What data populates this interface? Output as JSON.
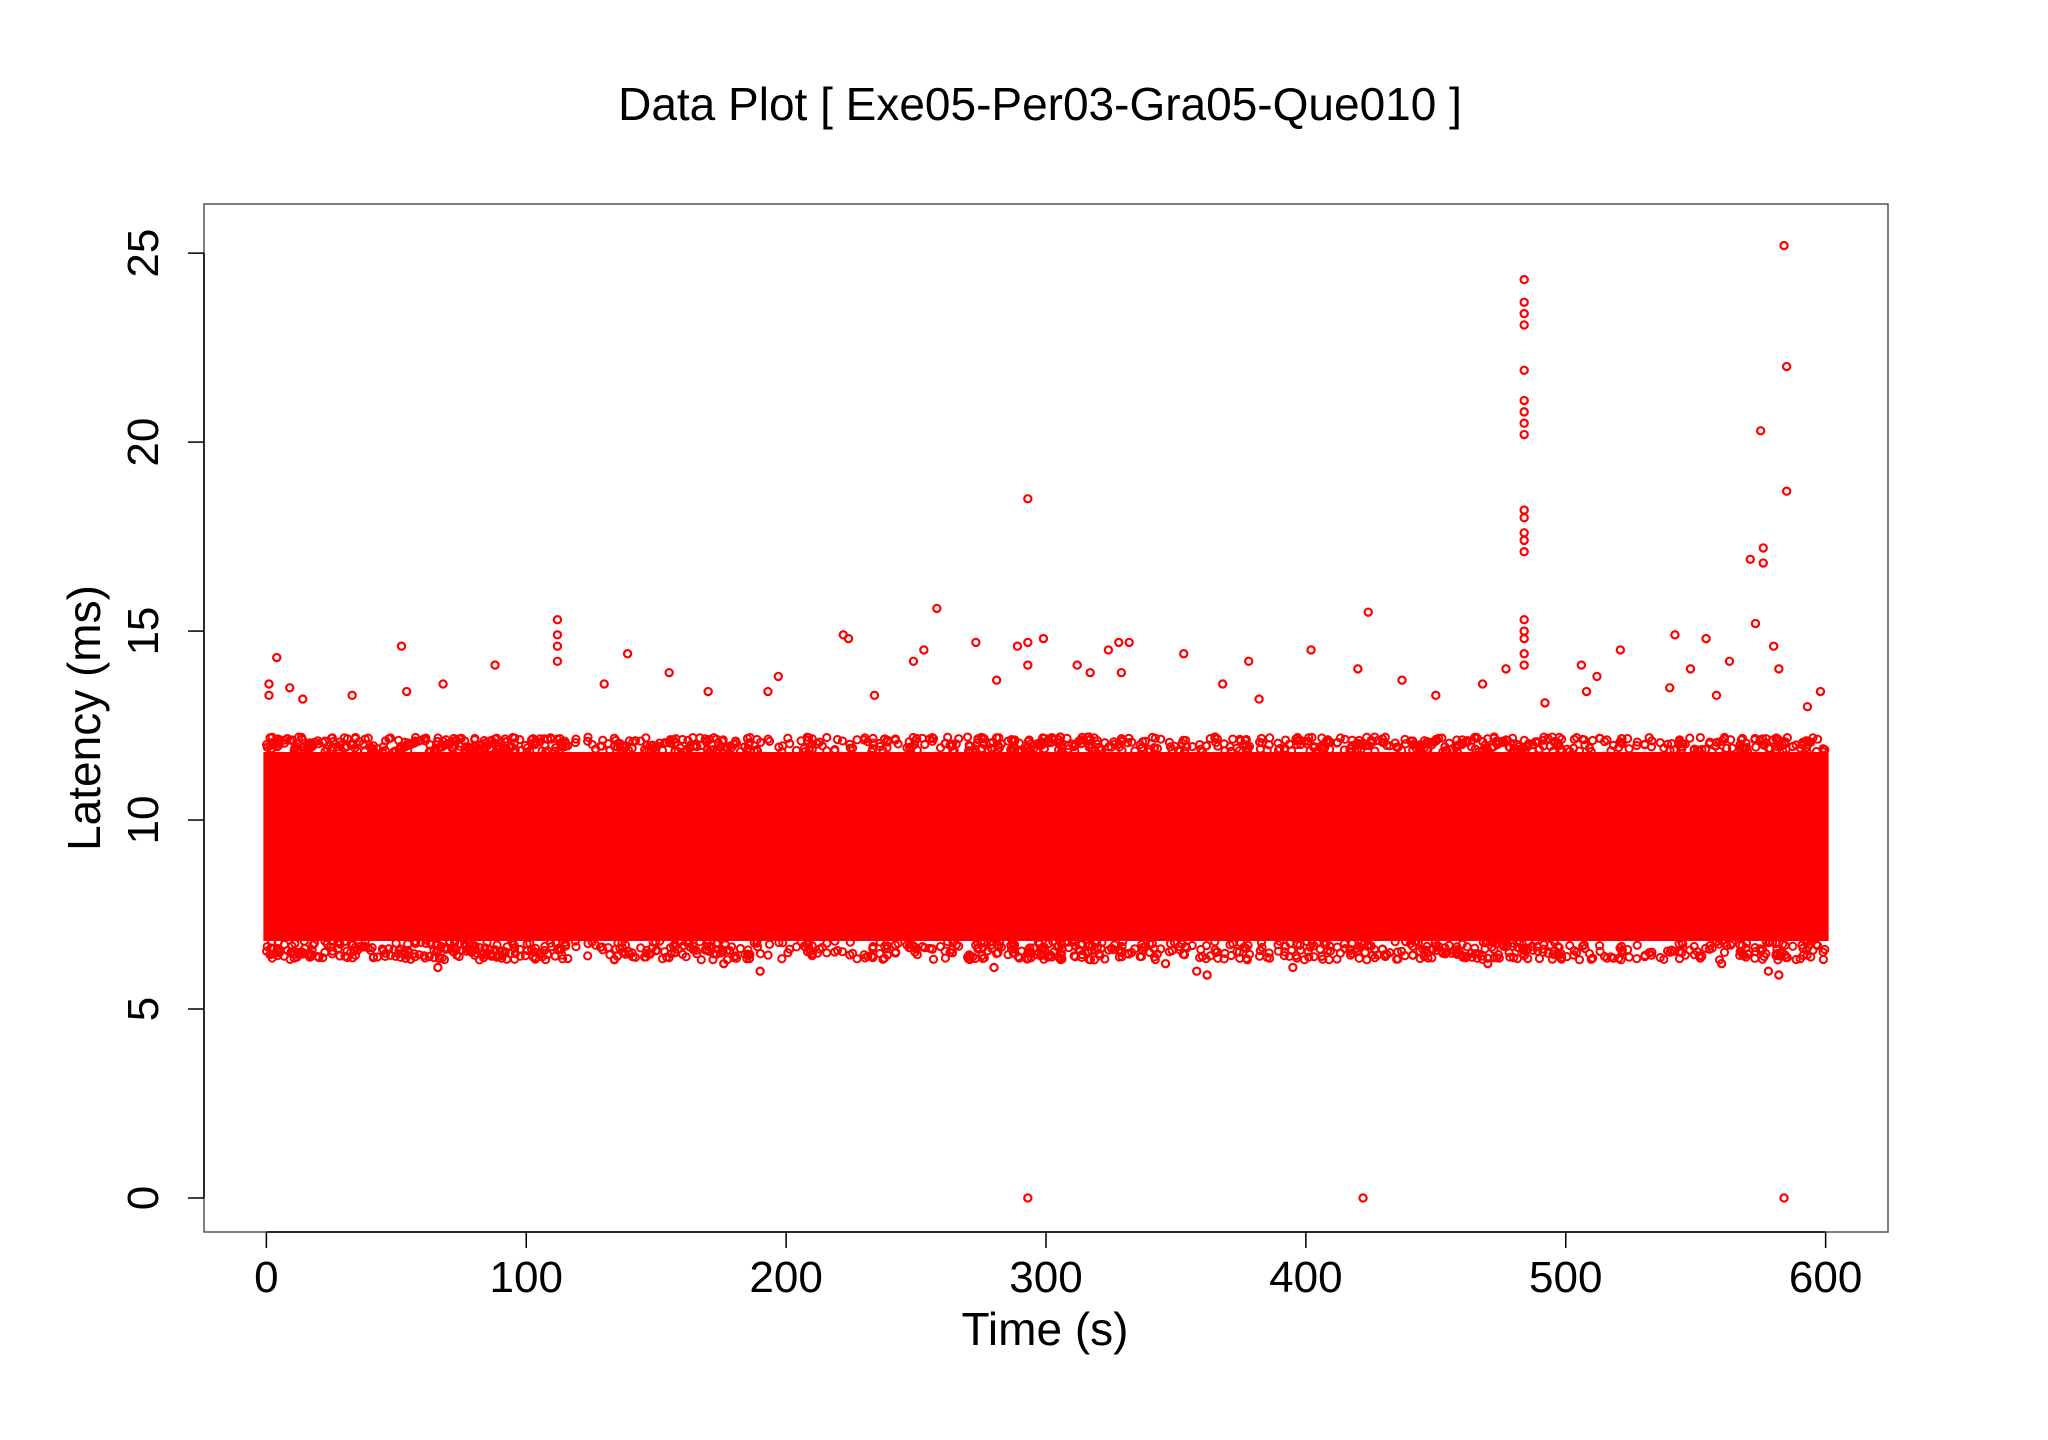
{
  "chart_data": {
    "type": "scatter",
    "title": "Data Plot [ Exe05-Per03-Gra05-Que010 ]",
    "xlabel": "Time (s)",
    "ylabel": "Latency (ms)",
    "xlim": [
      -24,
      624
    ],
    "ylim": [
      -0.9,
      26.3
    ],
    "x_ticks": [
      0,
      100,
      200,
      300,
      400,
      500,
      600
    ],
    "y_ticks": [
      0,
      5,
      10,
      15,
      20,
      25
    ],
    "x_tick_labels": [
      "0",
      "100",
      "200",
      "300",
      "400",
      "500",
      "600"
    ],
    "y_tick_labels": [
      "0",
      "5",
      "10",
      "15",
      "20",
      "25"
    ],
    "grid": false,
    "legend": "none",
    "marker": "open-circle",
    "color": "#ff0000",
    "dense_band": {
      "x_range": [
        0,
        600
      ],
      "core_y_range": [
        6.8,
        11.8
      ],
      "lower_edge_y": 6.3,
      "upper_edge_y": 12.2
    },
    "points": [
      [
        1,
        13.6
      ],
      [
        1,
        13.3
      ],
      [
        4,
        14.3
      ],
      [
        9,
        13.5
      ],
      [
        14,
        13.2
      ],
      [
        33,
        13.3
      ],
      [
        52,
        14.6
      ],
      [
        54,
        13.4
      ],
      [
        68,
        13.6
      ],
      [
        88,
        14.1
      ],
      [
        112,
        15.3
      ],
      [
        112,
        14.9
      ],
      [
        112,
        14.6
      ],
      [
        112,
        14.2
      ],
      [
        130,
        13.6
      ],
      [
        139,
        14.4
      ],
      [
        155,
        13.9
      ],
      [
        170,
        13.4
      ],
      [
        193,
        13.4
      ],
      [
        197,
        13.8
      ],
      [
        222,
        14.9
      ],
      [
        224,
        14.8
      ],
      [
        234,
        13.3
      ],
      [
        249,
        14.2
      ],
      [
        253,
        14.5
      ],
      [
        258,
        15.6
      ],
      [
        273,
        14.7
      ],
      [
        281,
        13.7
      ],
      [
        289,
        14.6
      ],
      [
        293,
        18.5
      ],
      [
        293,
        14.7
      ],
      [
        293,
        14.1
      ],
      [
        299,
        14.8
      ],
      [
        312,
        14.1
      ],
      [
        317,
        13.9
      ],
      [
        324,
        14.5
      ],
      [
        328,
        14.7
      ],
      [
        329,
        13.9
      ],
      [
        332,
        14.7
      ],
      [
        353,
        14.4
      ],
      [
        368,
        13.6
      ],
      [
        378,
        14.2
      ],
      [
        382,
        13.2
      ],
      [
        402,
        14.5
      ],
      [
        420,
        14.0
      ],
      [
        424,
        15.5
      ],
      [
        437,
        13.7
      ],
      [
        450,
        13.3
      ],
      [
        468,
        13.6
      ],
      [
        477,
        14.0
      ],
      [
        484,
        24.3
      ],
      [
        484,
        23.7
      ],
      [
        484,
        23.4
      ],
      [
        484,
        23.1
      ],
      [
        484,
        21.9
      ],
      [
        484,
        21.1
      ],
      [
        484,
        20.8
      ],
      [
        484,
        20.5
      ],
      [
        484,
        20.2
      ],
      [
        484,
        18.2
      ],
      [
        484,
        18.0
      ],
      [
        484,
        17.6
      ],
      [
        484,
        17.4
      ],
      [
        484,
        17.1
      ],
      [
        484,
        15.3
      ],
      [
        484,
        15.0
      ],
      [
        484,
        14.8
      ],
      [
        484,
        14.4
      ],
      [
        484,
        14.1
      ],
      [
        492,
        13.1
      ],
      [
        506,
        14.1
      ],
      [
        508,
        13.4
      ],
      [
        512,
        13.8
      ],
      [
        521,
        14.5
      ],
      [
        540,
        13.5
      ],
      [
        542,
        14.9
      ],
      [
        548,
        14.0
      ],
      [
        554,
        14.8
      ],
      [
        558,
        13.3
      ],
      [
        563,
        14.2
      ],
      [
        571,
        16.9
      ],
      [
        573,
        15.2
      ],
      [
        575,
        20.3
      ],
      [
        576,
        17.2
      ],
      [
        576,
        16.8
      ],
      [
        580,
        14.6
      ],
      [
        582,
        14.0
      ],
      [
        584,
        25.2
      ],
      [
        585,
        22.0
      ],
      [
        585,
        18.7
      ],
      [
        593,
        13.0
      ],
      [
        598,
        13.4
      ],
      [
        66,
        6.1
      ],
      [
        176,
        6.2
      ],
      [
        190,
        6.0
      ],
      [
        280,
        6.1
      ],
      [
        346,
        6.2
      ],
      [
        358,
        6.0
      ],
      [
        362,
        5.9
      ],
      [
        395,
        6.1
      ],
      [
        470,
        6.2
      ],
      [
        560,
        6.2
      ],
      [
        578,
        6.0
      ],
      [
        582,
        5.9
      ],
      [
        293,
        0
      ],
      [
        422,
        0
      ],
      [
        584,
        0
      ]
    ]
  }
}
